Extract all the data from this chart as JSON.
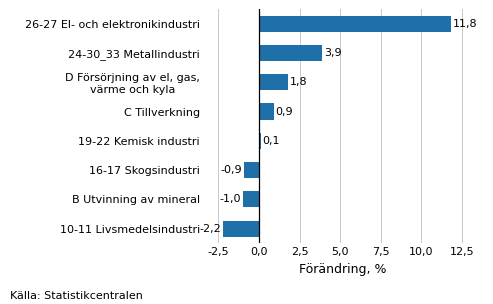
{
  "categories": [
    "10-11 Livsmedelsindustri",
    "B Utvinning av mineral",
    "16-17 Skogsindustri",
    "19-22 Kemisk industri",
    "C Tillverkning",
    "D Försörjning av el, gas,\nvärme och kyla",
    "24-30_33 Metallindustri",
    "26-27 El- och elektronikindustri"
  ],
  "values": [
    -2.2,
    -1.0,
    -0.9,
    0.1,
    0.9,
    1.8,
    3.9,
    11.8
  ],
  "bar_color": "#1f6fa8",
  "xlabel": "Förändring, %",
  "source": "Källa: Statistikcentralen",
  "xlim": [
    -3.2,
    13.5
  ],
  "xticks": [
    -2.5,
    0.0,
    2.5,
    5.0,
    7.5,
    10.0,
    12.5
  ],
  "xtick_labels": [
    "-2,5",
    "0,0",
    "2,5",
    "5,0",
    "7,5",
    "10,0",
    "12,5"
  ],
  "value_labels": [
    "-2,2",
    "-1,0",
    "-0,9",
    "0,1",
    "0,9",
    "1,8",
    "3,9",
    "11,8"
  ],
  "background_color": "#ffffff",
  "bar_height": 0.55,
  "label_fontsize": 8.0,
  "tick_fontsize": 8.0,
  "xlabel_fontsize": 9.0,
  "source_fontsize": 8.0
}
